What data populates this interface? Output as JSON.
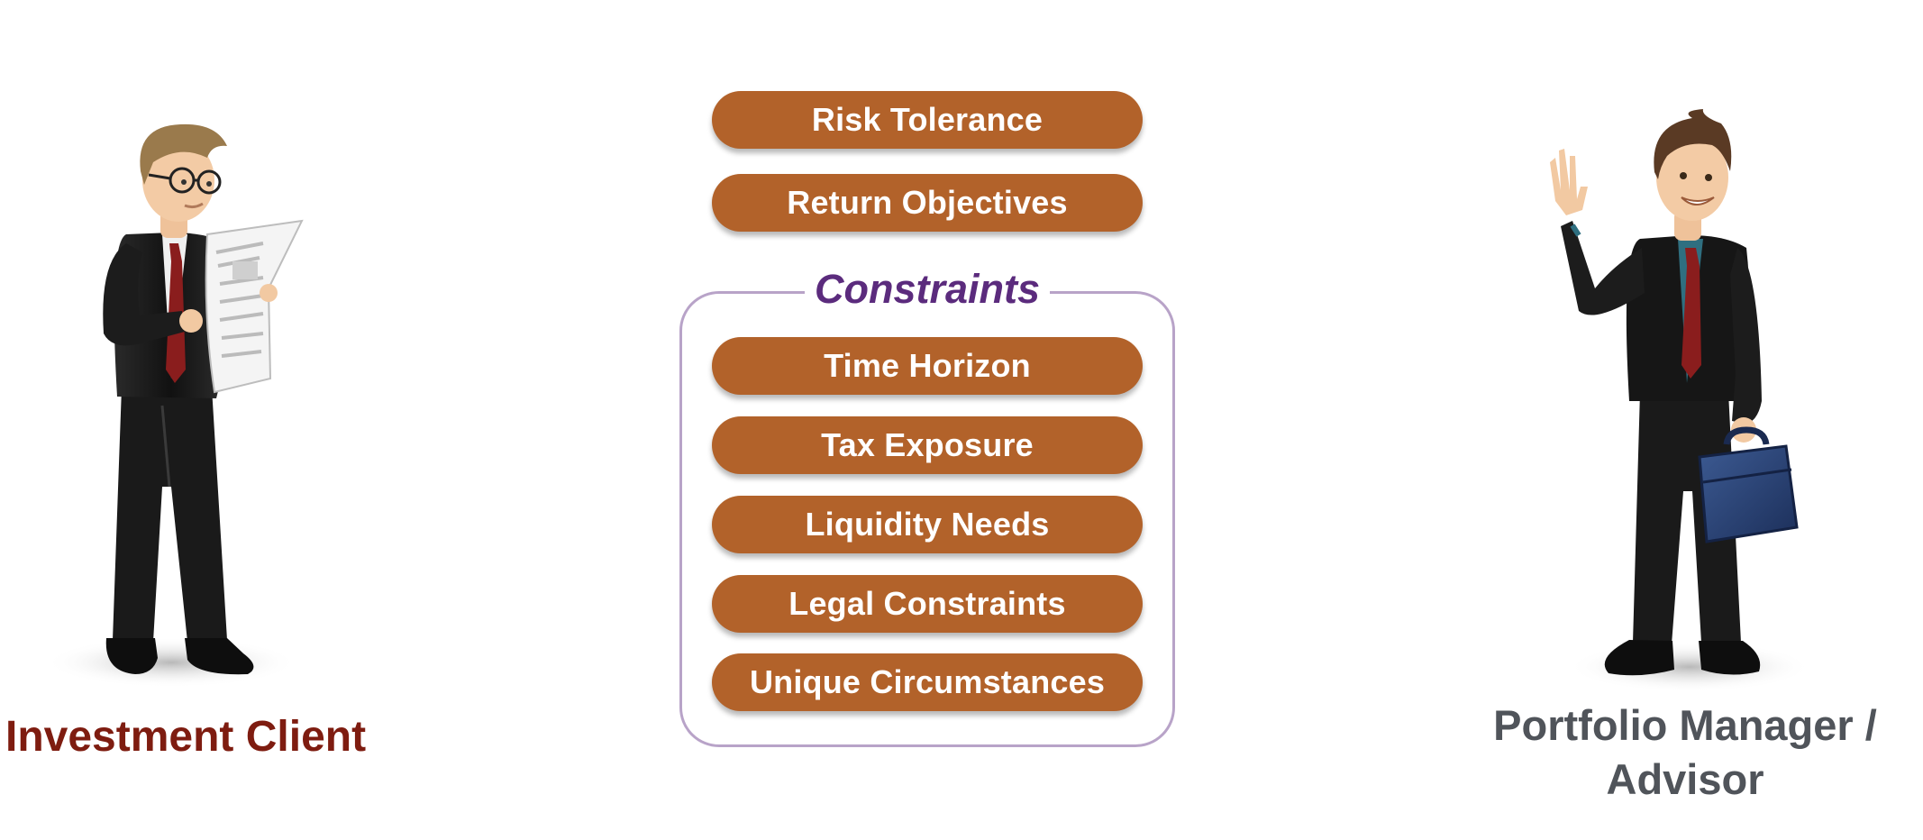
{
  "top_items": [
    {
      "label": "Risk Tolerance"
    },
    {
      "label": "Return Objectives"
    }
  ],
  "constraints": {
    "title": "Constraints",
    "items": [
      {
        "label": "Time Horizon"
      },
      {
        "label": "Tax Exposure"
      },
      {
        "label": "Liquidity Needs"
      },
      {
        "label": "Legal Constraints"
      },
      {
        "label": "Unique Circumstances"
      }
    ]
  },
  "client": {
    "label": "Investment Client"
  },
  "advisor": {
    "label_line1": "Portfolio Manager /",
    "label_line2": "Advisor"
  },
  "colors": {
    "pill": "#b2622a",
    "constraints_title": "#5b2b7d",
    "constraints_border": "#b8a3c8",
    "client_label": "#7e1c10",
    "advisor_label": "#50545a"
  },
  "icons": {
    "client_figure": "businessman-reading-newspaper-icon",
    "advisor_figure": "businessman-waving-with-briefcase-icon"
  }
}
